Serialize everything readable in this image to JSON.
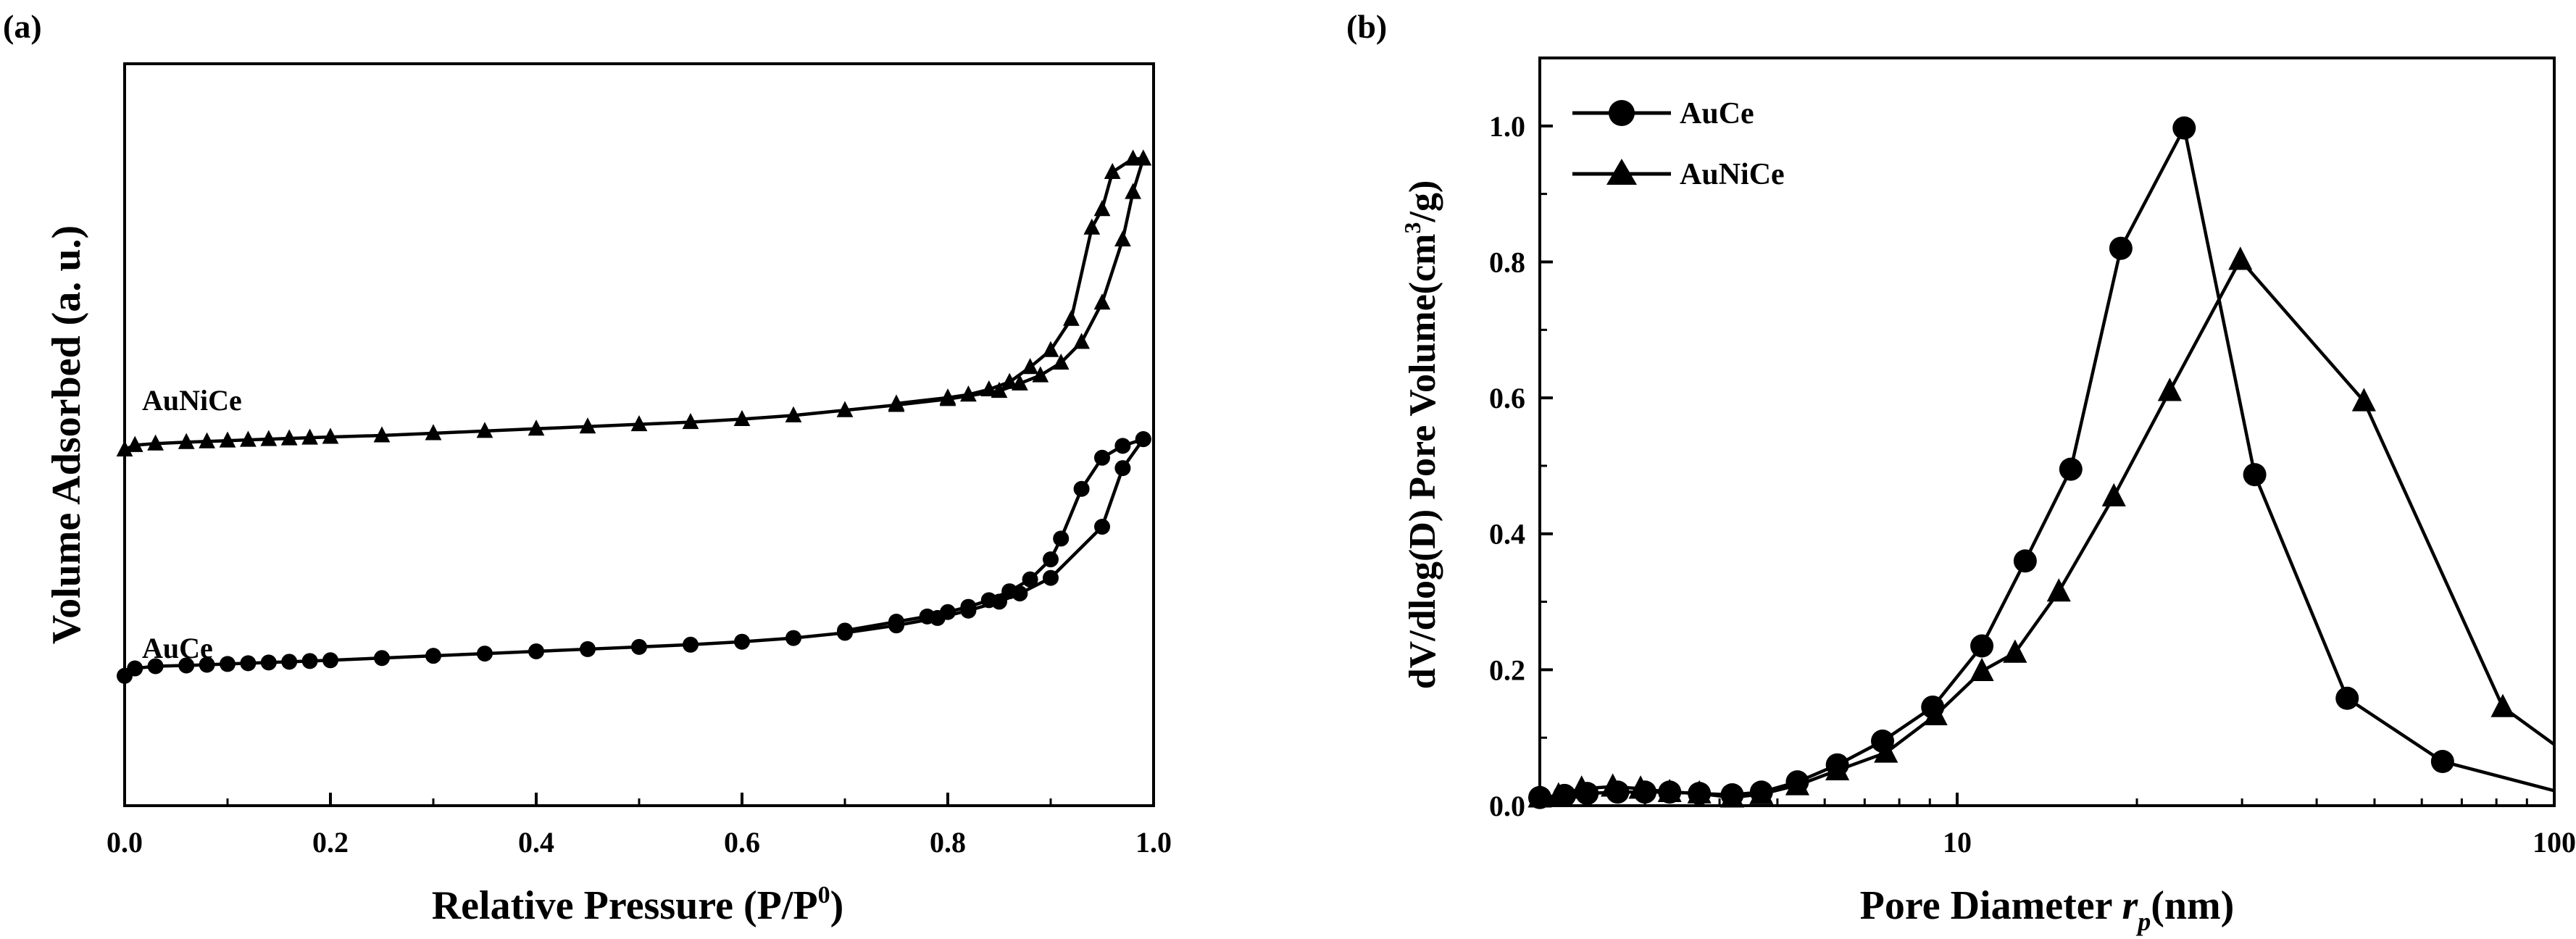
{
  "colors": {
    "ink": "#000000",
    "background": "#ffffff"
  },
  "chart_data": [
    {
      "panel_label": "(a)",
      "type": "line",
      "title": "",
      "xlabel": "Relative Pressure (P/P",
      "xlabel_sup": "0",
      "xlabel_tail": ")",
      "ylabel": "Volume Adsorbed (a. u.)",
      "xlim": [
        0.0,
        1.0
      ],
      "ylim": [
        0,
        100
      ],
      "x_ticks": [
        0.0,
        0.2,
        0.4,
        0.6,
        0.8,
        1.0
      ],
      "x_tick_labels": [
        "0.0",
        "0.2",
        "0.4",
        "0.6",
        "0.8",
        "1.0"
      ],
      "y_tick_labels": [],
      "grid": false,
      "series": [
        {
          "name": "AuCe",
          "marker": "circle",
          "label": "AuCe",
          "adsorption": {
            "x": [
              0.0,
              0.01,
              0.03,
              0.06,
              0.08,
              0.1,
              0.12,
              0.14,
              0.16,
              0.18,
              0.2,
              0.25,
              0.3,
              0.35,
              0.4,
              0.45,
              0.5,
              0.55,
              0.6,
              0.65,
              0.7,
              0.75,
              0.79,
              0.82,
              0.85,
              0.87,
              0.9,
              0.95,
              0.97,
              0.99
            ],
            "y": [
              17.5,
              18.5,
              18.8,
              18.9,
              19.0,
              19.1,
              19.2,
              19.3,
              19.4,
              19.5,
              19.6,
              19.9,
              20.2,
              20.5,
              20.8,
              21.1,
              21.4,
              21.7,
              22.1,
              22.6,
              23.3,
              24.3,
              25.3,
              26.3,
              27.5,
              28.6,
              30.7,
              37.6,
              45.5,
              49.4
            ]
          },
          "desorption": {
            "x": [
              0.99,
              0.97,
              0.95,
              0.93,
              0.91,
              0.9,
              0.88,
              0.86,
              0.84,
              0.82,
              0.8,
              0.78,
              0.75,
              0.7
            ],
            "y": [
              49.4,
              48.5,
              46.9,
              42.7,
              36.0,
              33.2,
              30.5,
              28.9,
              27.7,
              26.8,
              26.1,
              25.5,
              24.8,
              23.6
            ]
          }
        },
        {
          "name": "AuNiCe",
          "marker": "triangle",
          "label": "AuNiCe",
          "adsorption": {
            "x": [
              0.0,
              0.01,
              0.03,
              0.06,
              0.08,
              0.1,
              0.12,
              0.14,
              0.16,
              0.18,
              0.2,
              0.25,
              0.3,
              0.35,
              0.4,
              0.45,
              0.5,
              0.55,
              0.6,
              0.65,
              0.7,
              0.75,
              0.8,
              0.85,
              0.87,
              0.89,
              0.91,
              0.93,
              0.95,
              0.97,
              0.98,
              0.99
            ],
            "y": [
              48.0,
              48.6,
              48.8,
              49.0,
              49.1,
              49.2,
              49.3,
              49.4,
              49.5,
              49.6,
              49.7,
              49.9,
              50.2,
              50.5,
              50.8,
              51.1,
              51.4,
              51.7,
              52.1,
              52.6,
              53.3,
              54.0,
              54.8,
              55.9,
              56.9,
              58.0,
              59.7,
              62.5,
              67.8,
              76.3,
              82.7,
              87.2
            ]
          },
          "desorption": {
            "x": [
              0.99,
              0.98,
              0.96,
              0.95,
              0.94,
              0.92,
              0.9,
              0.88,
              0.86,
              0.84,
              0.82,
              0.8,
              0.75
            ],
            "y": [
              87.2,
              87.2,
              85.4,
              80.4,
              77.9,
              65.6,
              61.4,
              59.1,
              57.1,
              56.1,
              55.4,
              55.0,
              54.2
            ]
          }
        }
      ]
    },
    {
      "panel_label": "(b)",
      "type": "line",
      "title": "",
      "xlabel": "Pore Diameter ",
      "xlabel_italic": "r",
      "xlabel_sub": "p",
      "xlabel_tail": "(nm)",
      "ylabel": "dV/dlog(D) Pore Volume(cm",
      "ylabel_sup": "3",
      "ylabel_tail": "/g)",
      "x_scale": "log",
      "xlim": [
        2,
        100
      ],
      "ylim": [
        0.0,
        1.1
      ],
      "x_ticks": [
        10,
        100
      ],
      "x_tick_labels": [
        "10",
        "100"
      ],
      "y_ticks": [
        0.0,
        0.2,
        0.4,
        0.6,
        0.8,
        1.0
      ],
      "y_tick_labels": [
        "0.0",
        "0.2",
        "0.4",
        "0.6",
        "0.8",
        "1.0"
      ],
      "grid": false,
      "legend_position": "top-left",
      "series": [
        {
          "name": "AuCe",
          "marker": "circle",
          "x": [
            2.0,
            2.2,
            2.4,
            2.7,
            3.0,
            3.3,
            3.7,
            4.2,
            4.7,
            5.4,
            6.3,
            7.5,
            9.1,
            11.0,
            13.0,
            15.5,
            18.8,
            24.0,
            31.5,
            45.0,
            65.0,
            100.0
          ],
          "y": [
            0.012,
            0.015,
            0.018,
            0.02,
            0.02,
            0.02,
            0.018,
            0.016,
            0.02,
            0.035,
            0.06,
            0.095,
            0.145,
            0.235,
            0.36,
            0.495,
            0.82,
            0.997,
            0.487,
            0.158,
            0.065,
            0.022
          ]
        },
        {
          "name": "AuNiCe",
          "marker": "triangle",
          "x": [
            2.0,
            2.15,
            2.35,
            2.65,
            2.95,
            3.3,
            3.7,
            4.2,
            4.7,
            5.4,
            6.3,
            7.6,
            9.2,
            11.0,
            12.5,
            14.8,
            18.3,
            22.7,
            29.8,
            48.0,
            82.0,
            100.0
          ],
          "y": [
            0.012,
            0.015,
            0.025,
            0.028,
            0.025,
            0.02,
            0.018,
            0.012,
            0.017,
            0.03,
            0.052,
            0.078,
            0.133,
            0.198,
            0.225,
            0.315,
            0.455,
            0.61,
            0.803,
            0.595,
            0.145,
            0.09
          ]
        }
      ]
    }
  ]
}
